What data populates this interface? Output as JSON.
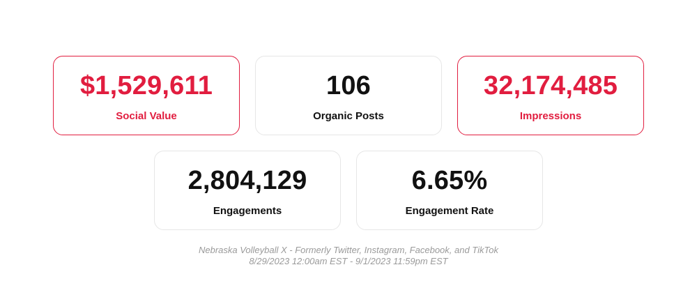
{
  "accent_color": "#e11d3f",
  "text_color": "#111111",
  "caption_color": "#9a9a9a",
  "stats": [
    {
      "value": "$1,529,611",
      "label": "Social Value",
      "highlighted": true
    },
    {
      "value": "106",
      "label": "Organic Posts",
      "highlighted": false
    },
    {
      "value": "32,174,485",
      "label": "Impressions",
      "highlighted": true
    },
    {
      "value": "2,804,129",
      "label": "Engagements",
      "highlighted": false
    },
    {
      "value": "6.65%",
      "label": "Engagement Rate",
      "highlighted": false
    }
  ],
  "footer": {
    "source": "Nebraska Volleyball X - Formerly Twitter, Instagram, Facebook, and TikTok",
    "date_range": "8/29/2023 12:00am EST - 9/1/2023 11:59pm EST"
  }
}
